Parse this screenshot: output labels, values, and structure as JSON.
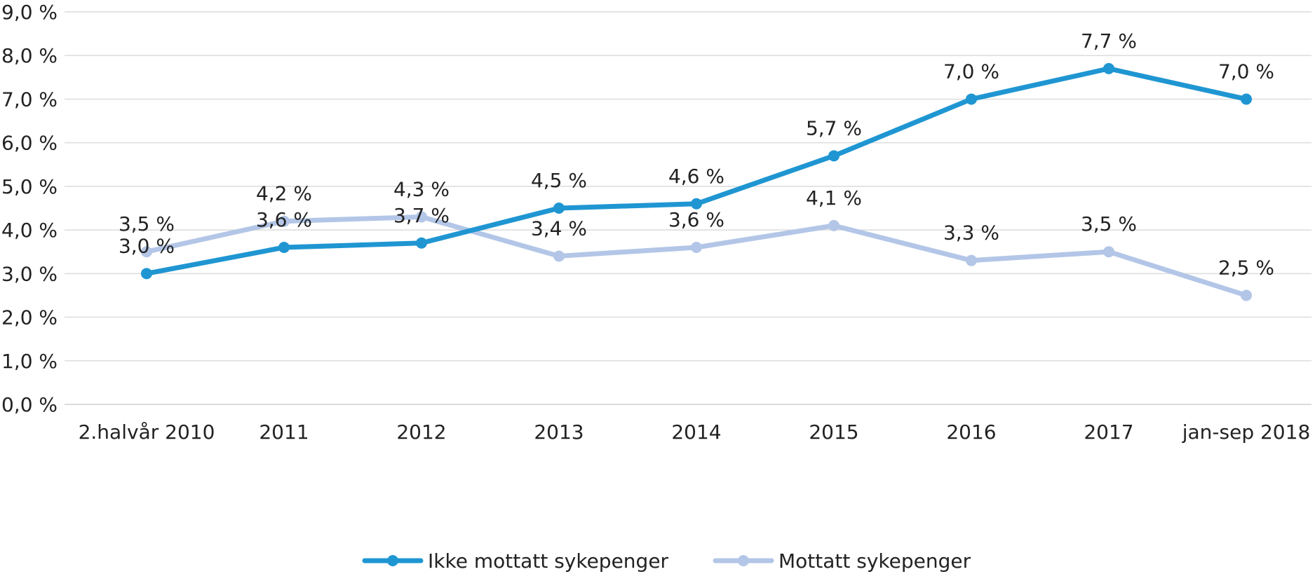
{
  "chart_data": {
    "type": "line",
    "categories": [
      "2.halvår 2010",
      "2011",
      "2012",
      "2013",
      "2014",
      "2015",
      "2016",
      "2017",
      "jan-sep 2018"
    ],
    "series": [
      {
        "name": "Ikke mottatt sykepenger",
        "color": "#1f96d2",
        "values": [
          3.0,
          3.6,
          3.7,
          4.5,
          4.6,
          5.7,
          7.0,
          7.7,
          7.0
        ],
        "labels": [
          "3,0 %",
          "3,6 %",
          "3,7 %",
          "4,5 %",
          "4,6 %",
          "5,7 %",
          "7,0 %",
          "7,7 %",
          "7,0 %"
        ]
      },
      {
        "name": "Mottatt sykepenger",
        "color": "#b3c6e7",
        "values": [
          3.5,
          4.2,
          4.3,
          3.4,
          3.6,
          4.1,
          3.3,
          3.5,
          2.5
        ],
        "labels": [
          "3,5 %",
          "4,2 %",
          "4,3 %",
          "3,4 %",
          "3,6 %",
          "4,1 %",
          "3,3 %",
          "3,5 %",
          "2,5 %"
        ]
      }
    ],
    "ylim": [
      0,
      9
    ],
    "yticks": [
      0,
      1,
      2,
      3,
      4,
      5,
      6,
      7,
      8,
      9
    ],
    "ytick_labels": [
      "0,0 %",
      "1,0 %",
      "2,0 %",
      "3,0 %",
      "4,0 %",
      "5,0 %",
      "6,0 %",
      "7,0 %",
      "8,0 %",
      "9,0 %"
    ],
    "grid": true,
    "legend_position": "bottom",
    "title": "",
    "xlabel": "",
    "ylabel": ""
  }
}
